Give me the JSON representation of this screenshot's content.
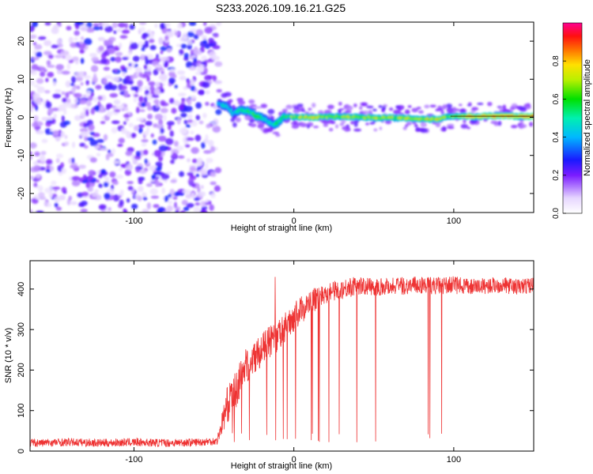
{
  "figure_title": "S233.2026.109.16.21.G25",
  "chart_data": [
    {
      "type": "heatmap",
      "title": "S233.2026.109.16.21.G25",
      "xlabel": "Height of straight line (km)",
      "ylabel": "Frequency (Hz)",
      "xlim": [
        -165,
        150
      ],
      "ylim": [
        -25,
        25
      ],
      "x_ticks": [
        -100,
        0,
        100
      ],
      "y_ticks": [
        -20,
        -10,
        0,
        10,
        20
      ],
      "x_tick_labels": [
        "-100",
        "0",
        "100"
      ],
      "y_tick_labels": [
        "-20",
        "-10",
        "0",
        "10",
        "20"
      ],
      "colorbar": {
        "label": "Normalized spectral amplitude",
        "range": [
          0,
          1
        ],
        "ticks": [
          0.0,
          0.2,
          0.4,
          0.6,
          0.8
        ],
        "tick_labels": [
          "0.0",
          "0.2",
          "0.4",
          "0.6",
          "0.8"
        ],
        "colormap": "rainbow (white-purple-blue-cyan-green-yellow-red-magenta)"
      },
      "noise_region": {
        "x_range": [
          -165,
          -47
        ],
        "y_range": [
          -25,
          25
        ],
        "amplitude": [
          0.05,
          0.3
        ]
      },
      "signal_track": [
        {
          "x": -47,
          "y": 3.5,
          "amp": 0.45
        },
        {
          "x": -42,
          "y": 3.0,
          "amp": 0.5
        },
        {
          "x": -38,
          "y": 1.0,
          "amp": 0.45
        },
        {
          "x": -33,
          "y": 2.0,
          "amp": 0.55
        },
        {
          "x": -28,
          "y": 1.5,
          "amp": 0.6
        },
        {
          "x": -24,
          "y": 0.5,
          "amp": 0.6
        },
        {
          "x": -20,
          "y": 0.0,
          "amp": 0.55
        },
        {
          "x": -16,
          "y": -1.0,
          "amp": 0.5
        },
        {
          "x": -13,
          "y": -2.0,
          "amp": 0.5
        },
        {
          "x": -10,
          "y": -1.5,
          "amp": 0.55
        },
        {
          "x": -6,
          "y": 0.3,
          "amp": 0.6
        },
        {
          "x": 0,
          "y": 0.0,
          "amp": 0.7
        },
        {
          "x": 10,
          "y": 0.0,
          "amp": 0.75
        },
        {
          "x": 25,
          "y": 0.2,
          "amp": 0.7
        },
        {
          "x": 45,
          "y": 0.0,
          "amp": 0.72
        },
        {
          "x": 70,
          "y": -0.2,
          "amp": 0.7
        },
        {
          "x": 85,
          "y": -0.5,
          "amp": 0.75
        },
        {
          "x": 92,
          "y": -0.3,
          "amp": 0.8
        },
        {
          "x": 98,
          "y": 0.3,
          "amp": 0.65
        },
        {
          "x": 110,
          "y": 0.3,
          "amp": 0.82
        },
        {
          "x": 130,
          "y": 0.3,
          "amp": 0.85
        },
        {
          "x": 150,
          "y": 0.3,
          "amp": 0.85
        }
      ]
    },
    {
      "type": "line",
      "title": "",
      "xlabel": "Height of straight line (km)",
      "ylabel": "SNR (10 * v/v)",
      "xlim": [
        -165,
        150
      ],
      "ylim": [
        0,
        470
      ],
      "x_ticks": [
        -100,
        0,
        100
      ],
      "y_ticks": [
        0,
        100,
        200,
        300,
        400
      ],
      "x_tick_labels": [
        "-100",
        "0",
        "100"
      ],
      "y_tick_labels": [
        "0",
        "100",
        "200",
        "300",
        "400"
      ],
      "grid": false,
      "series": [
        {
          "name": "SNR",
          "color": "#ee3333",
          "x": [
            -165,
            -140,
            -120,
            -100,
            -80,
            -60,
            -48,
            -42,
            -38,
            -35,
            -32,
            -25,
            -20,
            -15,
            -10,
            -5,
            0,
            5,
            10,
            15,
            20,
            25,
            30,
            35,
            40,
            50,
            60,
            70,
            80,
            90,
            100,
            110,
            120,
            130,
            140,
            150
          ],
          "y": [
            20,
            22,
            20,
            22,
            20,
            22,
            25,
            110,
            140,
            160,
            200,
            230,
            250,
            270,
            280,
            310,
            330,
            350,
            365,
            380,
            390,
            395,
            400,
            405,
            408,
            405,
            408,
            408,
            410,
            408,
            410,
            405,
            408,
            410,
            405,
            410
          ],
          "noise": [
            10,
            10,
            10,
            10,
            10,
            10,
            10,
            45,
            45,
            45,
            45,
            40,
            40,
            40,
            40,
            35,
            35,
            35,
            30,
            30,
            25,
            25,
            25,
            25,
            22,
            22,
            22,
            22,
            22,
            22,
            22,
            20,
            20,
            20,
            20,
            20
          ]
        }
      ],
      "dropouts_x_range": [
        -40,
        105
      ]
    }
  ]
}
